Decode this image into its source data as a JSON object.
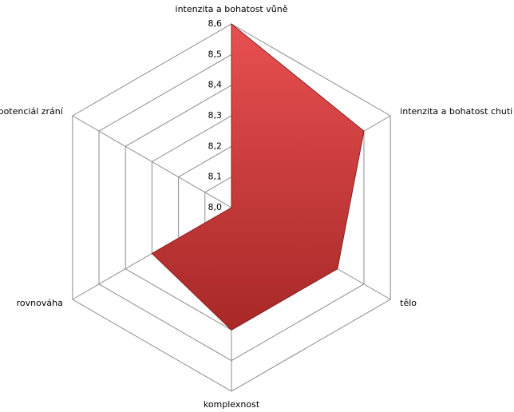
{
  "chart_data": {
    "type": "radar",
    "categories": [
      "intenzita a bohatost vůně",
      "intenzita a bohatost chuti",
      "tělo",
      "komplexnost",
      "rovnováha",
      "potenciál zrání"
    ],
    "values": [
      8.6,
      8.5,
      8.4,
      8.4,
      8.3,
      8.0
    ],
    "color": "#d94040",
    "rlim": [
      8.0,
      8.6
    ],
    "rticks": [
      {
        "value": 8.0,
        "label": "8,0"
      },
      {
        "value": 8.1,
        "label": "8,1"
      },
      {
        "value": 8.2,
        "label": "8,2"
      },
      {
        "value": 8.3,
        "label": "8,3"
      },
      {
        "value": 8.4,
        "label": "8,4"
      },
      {
        "value": 8.5,
        "label": "8,5"
      },
      {
        "value": 8.6,
        "label": "8,6"
      }
    ],
    "grid": true
  }
}
